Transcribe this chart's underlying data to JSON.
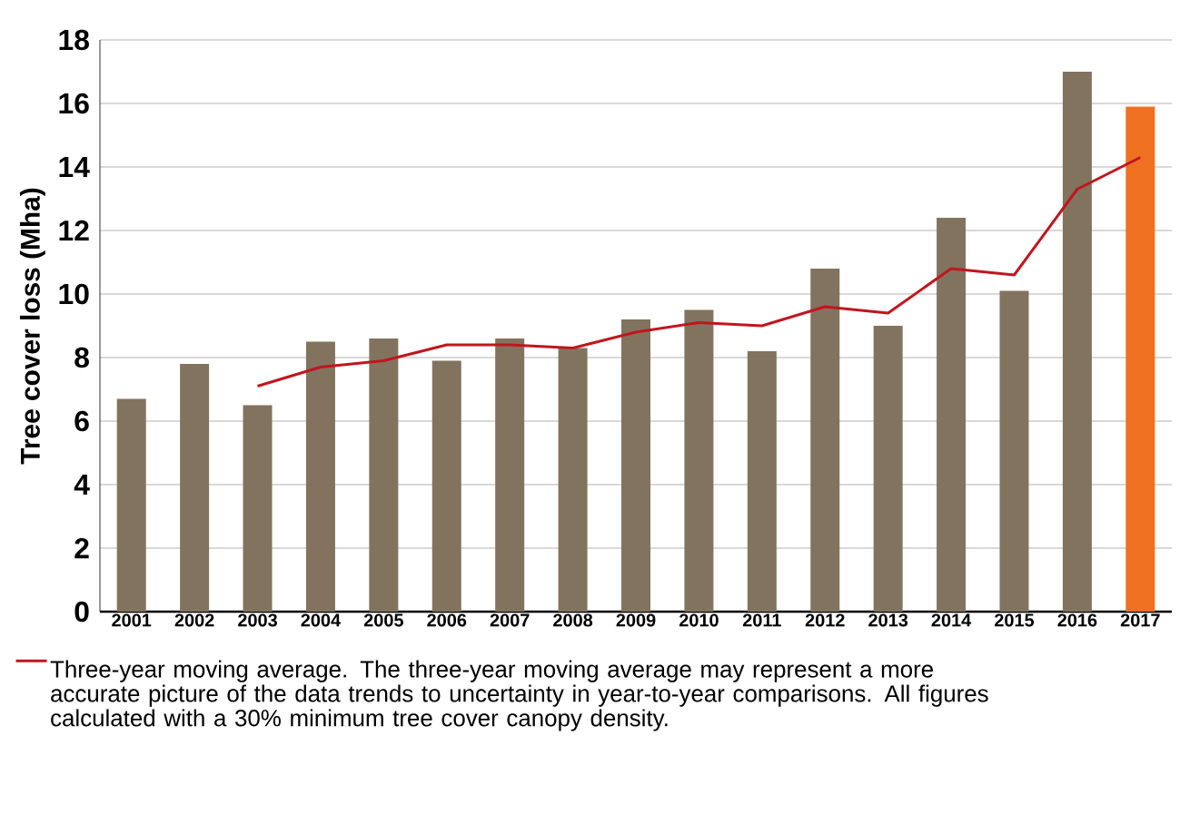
{
  "chart_data": {
    "type": "bar",
    "ylabel": "Tree cover loss (Mha)",
    "categories": [
      "2001",
      "2002",
      "2003",
      "2004",
      "2005",
      "2006",
      "2007",
      "2008",
      "2009",
      "2010",
      "2011",
      "2012",
      "2013",
      "2014",
      "2015",
      "2016",
      "2017"
    ],
    "series": [
      {
        "colors": [
          "#82735f",
          "#82735f",
          "#82735f",
          "#82735f",
          "#82735f",
          "#82735f",
          "#82735f",
          "#82735f",
          "#82735f",
          "#82735f",
          "#82735f",
          "#82735f",
          "#82735f",
          "#82735f",
          "#82735f",
          "#82735f",
          "#f07022"
        ],
        "values": [
          6.7,
          7.8,
          6.5,
          8.5,
          8.6,
          7.9,
          8.6,
          8.3,
          9.2,
          9.5,
          8.2,
          10.8,
          9.0,
          12.4,
          10.1,
          17.0,
          15.9
        ]
      },
      {
        "type": "line",
        "name": "Three-year moving average. The three-year moving average may represent a more accurate picture of the data trends to uncertainty in year-to-year comparisons. All figures calculated with a 30% minimum tree cover canopy density.",
        "color": "#c0161e",
        "values": [
          null,
          null,
          7.1,
          7.7,
          7.9,
          8.4,
          8.4,
          8.3,
          8.8,
          9.1,
          9.0,
          9.6,
          9.4,
          10.8,
          10.6,
          13.3,
          14.3
        ]
      }
    ],
    "ylim": [
      0,
      18
    ],
    "yticks": [
      0,
      2,
      4,
      6,
      8,
      10,
      12,
      14,
      16,
      18
    ],
    "grid": "y",
    "legend": "bottom"
  }
}
